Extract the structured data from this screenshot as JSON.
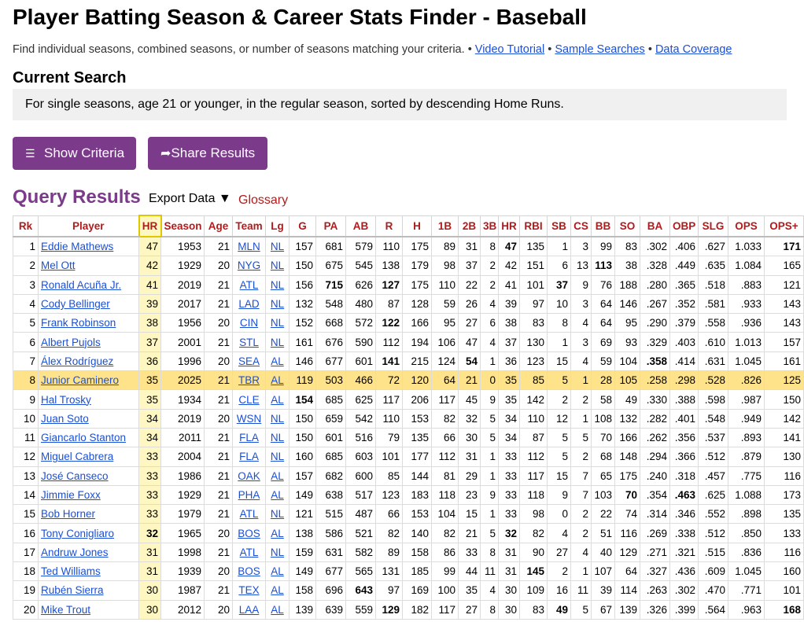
{
  "page": {
    "title": "Player Batting Season & Career Stats Finder - Baseball",
    "intro": "Find individual seasons, combined seasons, or number of seasons matching your criteria.",
    "separator": "•",
    "links": {
      "video": "Video Tutorial",
      "samples": "Sample Searches",
      "coverage": "Data Coverage"
    },
    "current_search": {
      "heading": "Current Search",
      "criteria": "For single seasons, age 21 or younger, in the regular season, sorted by descending Home Runs."
    },
    "buttons": {
      "show_criteria": "Show Criteria",
      "show_criteria_icon": "hamburger-menu-icon",
      "share_results": "Share Results",
      "share_results_icon": "share-arrow-icon"
    },
    "results": {
      "heading": "Query Results",
      "export": "Export Data ▼",
      "glossary": "Glossary"
    }
  },
  "table": {
    "columns": [
      "Rk",
      "Player",
      "HR",
      "Season",
      "Age",
      "Team",
      "Lg",
      "G",
      "PA",
      "AB",
      "R",
      "H",
      "1B",
      "2B",
      "3B",
      "HR",
      "RBI",
      "SB",
      "CS",
      "BB",
      "SO",
      "BA",
      "OBP",
      "SLG",
      "OPS",
      "OPS+"
    ],
    "sort_column": "HR",
    "highlight_color": "#fff7c2",
    "current_row_color": "#ffe38a",
    "header_color": "#b11b1b",
    "rows": [
      {
        "rk": "1",
        "player": "Eddie Mathews",
        "hr": "47",
        "season": "1953",
        "age": "21",
        "team": "MLN",
        "lg": "NL",
        "g": "157",
        "pa": "681",
        "ab": "579",
        "r": "110",
        "h": "175",
        "b1": "89",
        "b2": "31",
        "b3": "8",
        "hr2": "47",
        "rbi": "135",
        "sb": "1",
        "cs": "3",
        "bb": "99",
        "so": "83",
        "ba": ".302",
        "obp": ".406",
        "slg": ".627",
        "ops": "1.033",
        "opsp": "171",
        "bold": [
          "hr2",
          "opsp"
        ]
      },
      {
        "rk": "2",
        "player": "Mel Ott",
        "hr": "42",
        "season": "1929",
        "age": "20",
        "team": "NYG",
        "lg": "NL",
        "g": "150",
        "pa": "675",
        "ab": "545",
        "r": "138",
        "h": "179",
        "b1": "98",
        "b2": "37",
        "b3": "2",
        "hr2": "42",
        "rbi": "151",
        "sb": "6",
        "cs": "13",
        "bb": "113",
        "so": "38",
        "ba": ".328",
        "obp": ".449",
        "slg": ".635",
        "ops": "1.084",
        "opsp": "165",
        "bold": [
          "bb"
        ]
      },
      {
        "rk": "3",
        "player": "Ronald Acuña Jr.",
        "hr": "41",
        "season": "2019",
        "age": "21",
        "team": "ATL",
        "lg": "NL",
        "g": "156",
        "pa": "715",
        "ab": "626",
        "r": "127",
        "h": "175",
        "b1": "110",
        "b2": "22",
        "b3": "2",
        "hr2": "41",
        "rbi": "101",
        "sb": "37",
        "cs": "9",
        "bb": "76",
        "so": "188",
        "ba": ".280",
        "obp": ".365",
        "slg": ".518",
        "ops": ".883",
        "opsp": "121",
        "bold": [
          "pa",
          "r",
          "sb"
        ]
      },
      {
        "rk": "4",
        "player": "Cody Bellinger",
        "hr": "39",
        "season": "2017",
        "age": "21",
        "team": "LAD",
        "lg": "NL",
        "g": "132",
        "pa": "548",
        "ab": "480",
        "r": "87",
        "h": "128",
        "b1": "59",
        "b2": "26",
        "b3": "4",
        "hr2": "39",
        "rbi": "97",
        "sb": "10",
        "cs": "3",
        "bb": "64",
        "so": "146",
        "ba": ".267",
        "obp": ".352",
        "slg": ".581",
        "ops": ".933",
        "opsp": "143",
        "bold": []
      },
      {
        "rk": "5",
        "player": "Frank Robinson",
        "hr": "38",
        "season": "1956",
        "age": "20",
        "team": "CIN",
        "lg": "NL",
        "g": "152",
        "pa": "668",
        "ab": "572",
        "r": "122",
        "h": "166",
        "b1": "95",
        "b2": "27",
        "b3": "6",
        "hr2": "38",
        "rbi": "83",
        "sb": "8",
        "cs": "4",
        "bb": "64",
        "so": "95",
        "ba": ".290",
        "obp": ".379",
        "slg": ".558",
        "ops": ".936",
        "opsp": "143",
        "bold": [
          "r"
        ]
      },
      {
        "rk": "6",
        "player": "Albert Pujols",
        "hr": "37",
        "season": "2001",
        "age": "21",
        "team": "STL",
        "lg": "NL",
        "g": "161",
        "pa": "676",
        "ab": "590",
        "r": "112",
        "h": "194",
        "b1": "106",
        "b2": "47",
        "b3": "4",
        "hr2": "37",
        "rbi": "130",
        "sb": "1",
        "cs": "3",
        "bb": "69",
        "so": "93",
        "ba": ".329",
        "obp": ".403",
        "slg": ".610",
        "ops": "1.013",
        "opsp": "157",
        "bold": []
      },
      {
        "rk": "7",
        "player": "Álex Rodríguez",
        "hr": "36",
        "season": "1996",
        "age": "20",
        "team": "SEA",
        "lg": "AL",
        "g": "146",
        "pa": "677",
        "ab": "601",
        "r": "141",
        "h": "215",
        "b1": "124",
        "b2": "54",
        "b3": "1",
        "hr2": "36",
        "rbi": "123",
        "sb": "15",
        "cs": "4",
        "bb": "59",
        "so": "104",
        "ba": ".358",
        "obp": ".414",
        "slg": ".631",
        "ops": "1.045",
        "opsp": "161",
        "bold": [
          "r",
          "b2",
          "ba"
        ]
      },
      {
        "rk": "8",
        "player": "Junior Caminero",
        "hr": "35",
        "season": "2025",
        "age": "21",
        "team": "TBR",
        "lg": "AL",
        "g": "119",
        "pa": "503",
        "ab": "466",
        "r": "72",
        "h": "120",
        "b1": "64",
        "b2": "21",
        "b3": "0",
        "hr2": "35",
        "rbi": "85",
        "sb": "5",
        "cs": "1",
        "bb": "28",
        "so": "105",
        "ba": ".258",
        "obp": ".298",
        "slg": ".528",
        "ops": ".826",
        "opsp": "125",
        "bold": [],
        "current": true
      },
      {
        "rk": "9",
        "player": "Hal Trosky",
        "hr": "35",
        "season": "1934",
        "age": "21",
        "team": "CLE",
        "lg": "AL",
        "g": "154",
        "pa": "685",
        "ab": "625",
        "r": "117",
        "h": "206",
        "b1": "117",
        "b2": "45",
        "b3": "9",
        "hr2": "35",
        "rbi": "142",
        "sb": "2",
        "cs": "2",
        "bb": "58",
        "so": "49",
        "ba": ".330",
        "obp": ".388",
        "slg": ".598",
        "ops": ".987",
        "opsp": "150",
        "bold": [
          "g"
        ]
      },
      {
        "rk": "10",
        "player": "Juan Soto",
        "hr": "34",
        "season": "2019",
        "age": "20",
        "team": "WSN",
        "lg": "NL",
        "g": "150",
        "pa": "659",
        "ab": "542",
        "r": "110",
        "h": "153",
        "b1": "82",
        "b2": "32",
        "b3": "5",
        "hr2": "34",
        "rbi": "110",
        "sb": "12",
        "cs": "1",
        "bb": "108",
        "so": "132",
        "ba": ".282",
        "obp": ".401",
        "slg": ".548",
        "ops": ".949",
        "opsp": "142",
        "bold": []
      },
      {
        "rk": "11",
        "player": "Giancarlo Stanton",
        "hr": "34",
        "season": "2011",
        "age": "21",
        "team": "FLA",
        "lg": "NL",
        "g": "150",
        "pa": "601",
        "ab": "516",
        "r": "79",
        "h": "135",
        "b1": "66",
        "b2": "30",
        "b3": "5",
        "hr2": "34",
        "rbi": "87",
        "sb": "5",
        "cs": "5",
        "bb": "70",
        "so": "166",
        "ba": ".262",
        "obp": ".356",
        "slg": ".537",
        "ops": ".893",
        "opsp": "141",
        "bold": []
      },
      {
        "rk": "12",
        "player": "Miguel Cabrera",
        "hr": "33",
        "season": "2004",
        "age": "21",
        "team": "FLA",
        "lg": "NL",
        "g": "160",
        "pa": "685",
        "ab": "603",
        "r": "101",
        "h": "177",
        "b1": "112",
        "b2": "31",
        "b3": "1",
        "hr2": "33",
        "rbi": "112",
        "sb": "5",
        "cs": "2",
        "bb": "68",
        "so": "148",
        "ba": ".294",
        "obp": ".366",
        "slg": ".512",
        "ops": ".879",
        "opsp": "130",
        "bold": []
      },
      {
        "rk": "13",
        "player": "José Canseco",
        "hr": "33",
        "season": "1986",
        "age": "21",
        "team": "OAK",
        "lg": "AL",
        "g": "157",
        "pa": "682",
        "ab": "600",
        "r": "85",
        "h": "144",
        "b1": "81",
        "b2": "29",
        "b3": "1",
        "hr2": "33",
        "rbi": "117",
        "sb": "15",
        "cs": "7",
        "bb": "65",
        "so": "175",
        "ba": ".240",
        "obp": ".318",
        "slg": ".457",
        "ops": ".775",
        "opsp": "116",
        "bold": []
      },
      {
        "rk": "14",
        "player": "Jimmie Foxx",
        "hr": "33",
        "season": "1929",
        "age": "21",
        "team": "PHA",
        "lg": "AL",
        "g": "149",
        "pa": "638",
        "ab": "517",
        "r": "123",
        "h": "183",
        "b1": "118",
        "b2": "23",
        "b3": "9",
        "hr2": "33",
        "rbi": "118",
        "sb": "9",
        "cs": "7",
        "bb": "103",
        "so": "70",
        "ba": ".354",
        "obp": ".463",
        "slg": ".625",
        "ops": "1.088",
        "opsp": "173",
        "bold": [
          "so",
          "obp"
        ]
      },
      {
        "rk": "15",
        "player": "Bob Horner",
        "hr": "33",
        "season": "1979",
        "age": "21",
        "team": "ATL",
        "lg": "NL",
        "g": "121",
        "pa": "515",
        "ab": "487",
        "r": "66",
        "h": "153",
        "b1": "104",
        "b2": "15",
        "b3": "1",
        "hr2": "33",
        "rbi": "98",
        "sb": "0",
        "cs": "2",
        "bb": "22",
        "so": "74",
        "ba": ".314",
        "obp": ".346",
        "slg": ".552",
        "ops": ".898",
        "opsp": "135",
        "bold": []
      },
      {
        "rk": "16",
        "player": "Tony Conigliaro",
        "hr": "32",
        "season": "1965",
        "age": "20",
        "team": "BOS",
        "lg": "AL",
        "g": "138",
        "pa": "586",
        "ab": "521",
        "r": "82",
        "h": "140",
        "b1": "82",
        "b2": "21",
        "b3": "5",
        "hr2": "32",
        "rbi": "82",
        "sb": "4",
        "cs": "2",
        "bb": "51",
        "so": "116",
        "ba": ".269",
        "obp": ".338",
        "slg": ".512",
        "ops": ".850",
        "opsp": "133",
        "bold": [
          "hr",
          "hr2"
        ]
      },
      {
        "rk": "17",
        "player": "Andruw Jones",
        "hr": "31",
        "season": "1998",
        "age": "21",
        "team": "ATL",
        "lg": "NL",
        "g": "159",
        "pa": "631",
        "ab": "582",
        "r": "89",
        "h": "158",
        "b1": "86",
        "b2": "33",
        "b3": "8",
        "hr2": "31",
        "rbi": "90",
        "sb": "27",
        "cs": "4",
        "bb": "40",
        "so": "129",
        "ba": ".271",
        "obp": ".321",
        "slg": ".515",
        "ops": ".836",
        "opsp": "116",
        "bold": []
      },
      {
        "rk": "18",
        "player": "Ted Williams",
        "hr": "31",
        "season": "1939",
        "age": "20",
        "team": "BOS",
        "lg": "AL",
        "g": "149",
        "pa": "677",
        "ab": "565",
        "r": "131",
        "h": "185",
        "b1": "99",
        "b2": "44",
        "b3": "11",
        "hr2": "31",
        "rbi": "145",
        "sb": "2",
        "cs": "1",
        "bb": "107",
        "so": "64",
        "ba": ".327",
        "obp": ".436",
        "slg": ".609",
        "ops": "1.045",
        "opsp": "160",
        "bold": [
          "rbi"
        ]
      },
      {
        "rk": "19",
        "player": "Rubén Sierra",
        "hr": "30",
        "season": "1987",
        "age": "21",
        "team": "TEX",
        "lg": "AL",
        "g": "158",
        "pa": "696",
        "ab": "643",
        "r": "97",
        "h": "169",
        "b1": "100",
        "b2": "35",
        "b3": "4",
        "hr2": "30",
        "rbi": "109",
        "sb": "16",
        "cs": "11",
        "bb": "39",
        "so": "114",
        "ba": ".263",
        "obp": ".302",
        "slg": ".470",
        "ops": ".771",
        "opsp": "101",
        "bold": [
          "ab"
        ]
      },
      {
        "rk": "20",
        "player": "Mike Trout",
        "hr": "30",
        "season": "2012",
        "age": "20",
        "team": "LAA",
        "lg": "AL",
        "g": "139",
        "pa": "639",
        "ab": "559",
        "r": "129",
        "h": "182",
        "b1": "117",
        "b2": "27",
        "b3": "8",
        "hr2": "30",
        "rbi": "83",
        "sb": "49",
        "cs": "5",
        "bb": "67",
        "so": "139",
        "ba": ".326",
        "obp": ".399",
        "slg": ".564",
        "ops": ".963",
        "opsp": "168",
        "bold": [
          "r",
          "sb",
          "opsp"
        ]
      }
    ]
  }
}
